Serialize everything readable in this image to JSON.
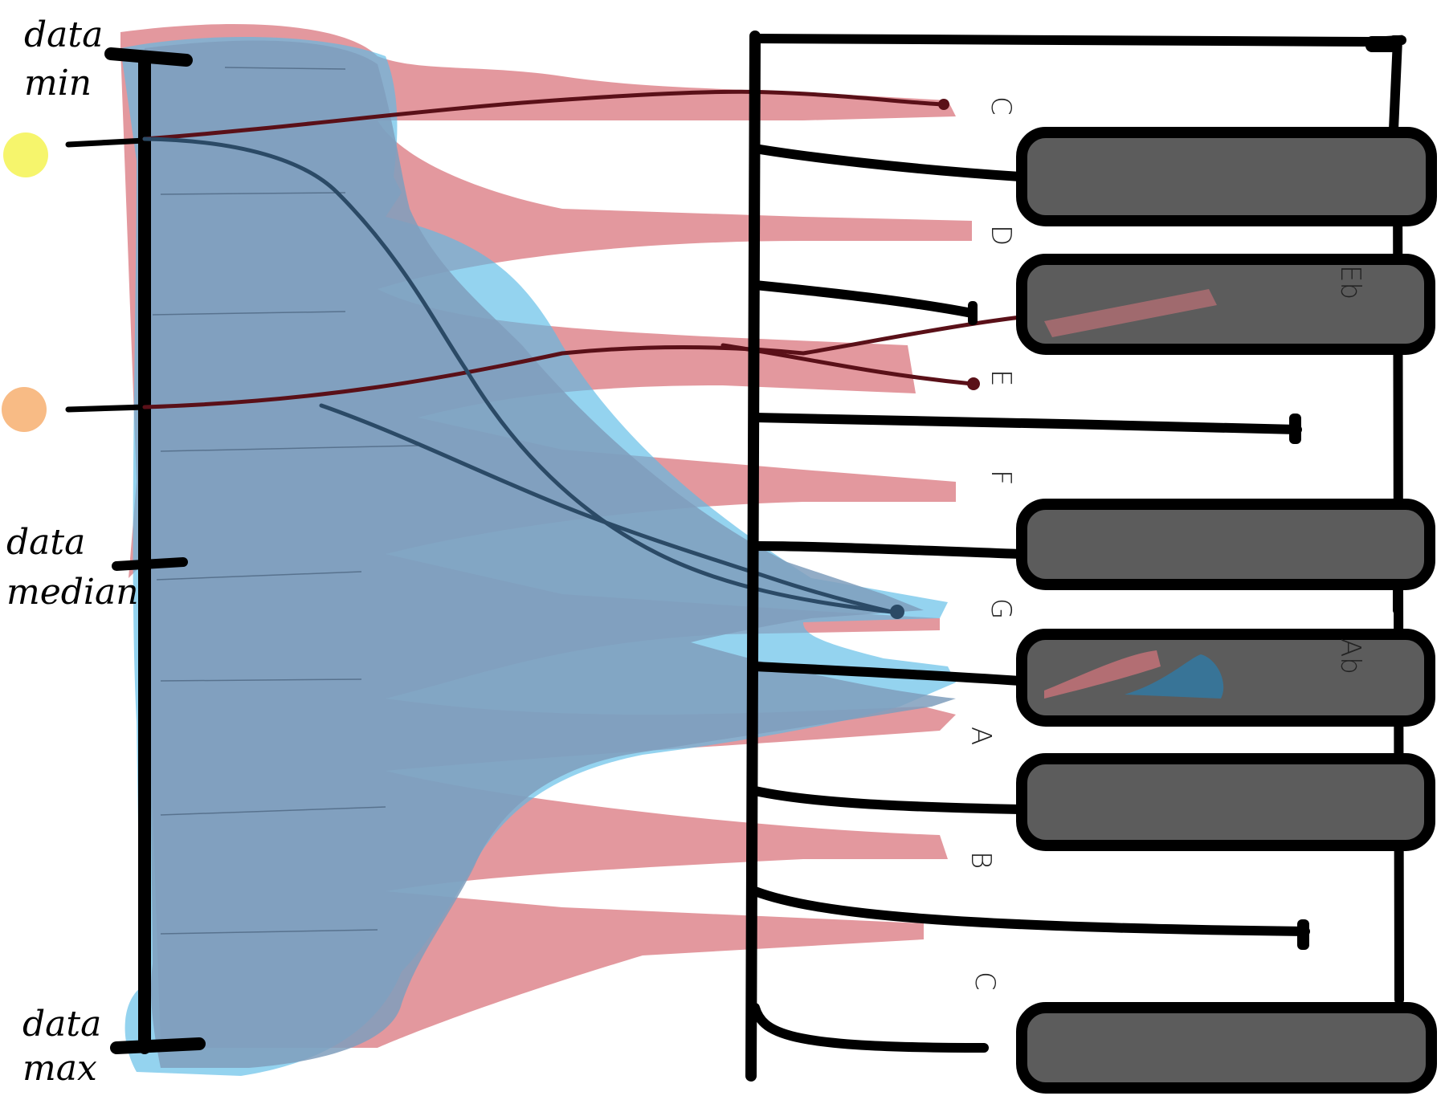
{
  "scale_labels": {
    "min_line1": "data",
    "min_line2": "min",
    "median_line1": "data",
    "median_line2": "median",
    "max_line1": "data",
    "max_line2": "max"
  },
  "keys": {
    "white": [
      "C",
      "D",
      "E",
      "F",
      "G",
      "A",
      "B",
      "C"
    ],
    "black": [
      "Eb",
      "Ab"
    ]
  },
  "colors": {
    "red_band": "#d9767e",
    "blue_band": "#5bbbe6",
    "overlap": "#7f9ebc",
    "dark_red_line": "#5a1018",
    "dark_blue_line": "#2b4a66",
    "black_key": "#5c5c5c",
    "marker_yellow": "#f6f56c",
    "marker_orange": "#f8bb85"
  }
}
